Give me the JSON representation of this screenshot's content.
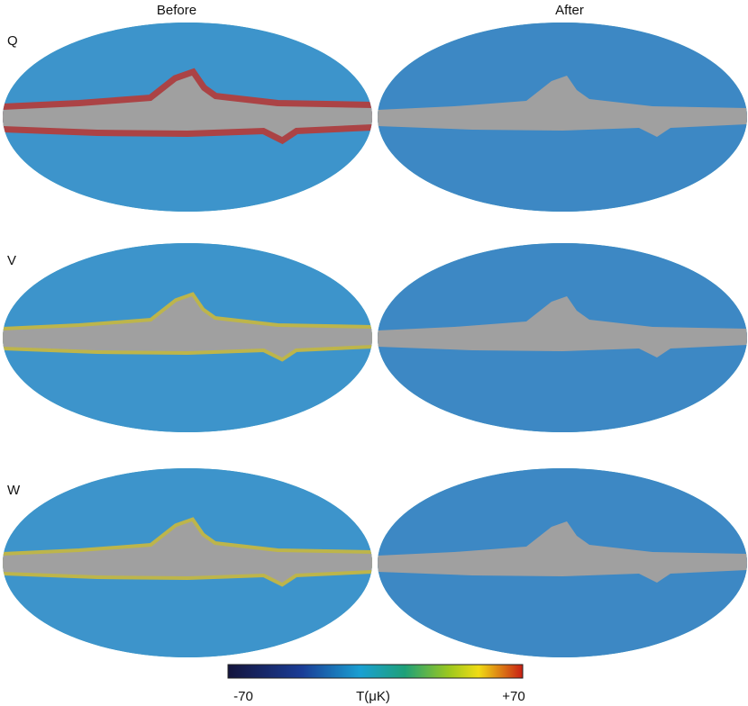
{
  "columns": [
    "Before",
    "After"
  ],
  "rows": [
    "Q",
    "V",
    "W"
  ],
  "colorbar": {
    "min_label": "-70",
    "label": "T(μK)",
    "max_label": "+70"
  }
}
